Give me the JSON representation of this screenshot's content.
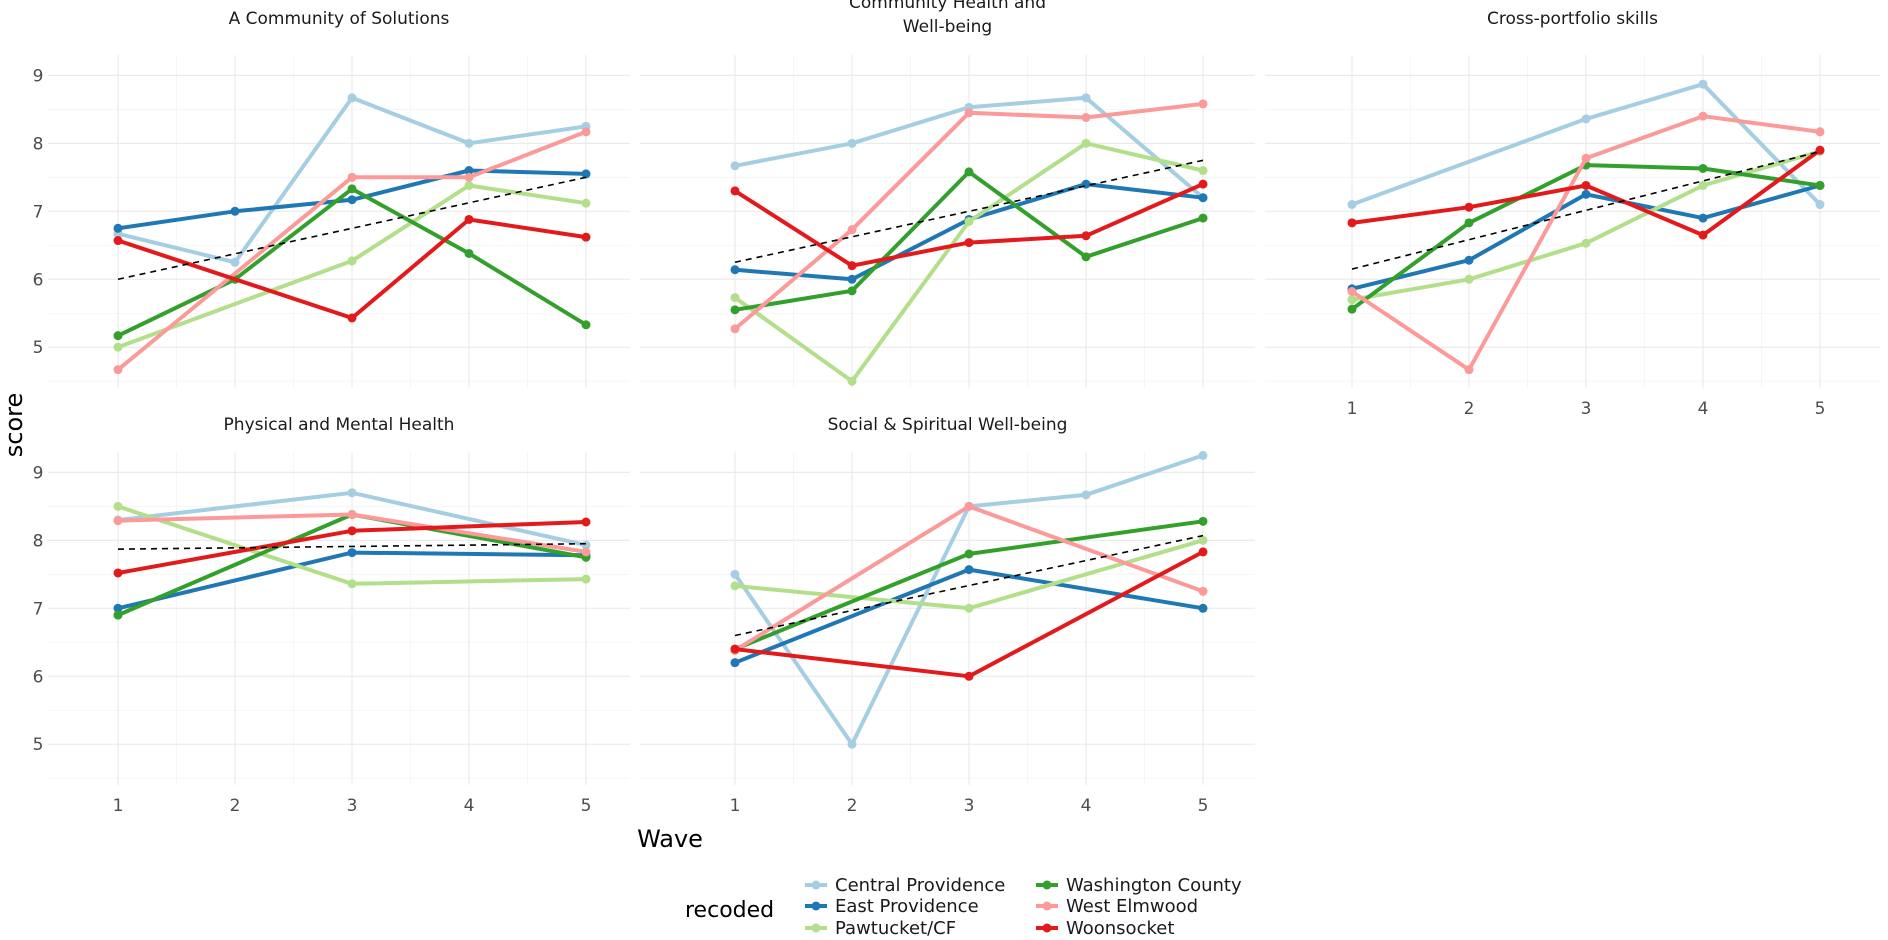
{
  "chart_data": {
    "type": "line",
    "facets": [
      "A Community of Solutions",
      "Community Health and\nWell-being",
      "Cross-portfolio skills",
      "Physical and Mental Health",
      "Social & Spiritual Well-being"
    ],
    "x": [
      1,
      2,
      3,
      4,
      5
    ],
    "xlabel": "Wave",
    "ylabel": "score",
    "ylim": [
      4.4,
      9.3
    ],
    "yticks": [
      5,
      6,
      7,
      8,
      9
    ],
    "grid": true,
    "legend": {
      "title": "recoded",
      "position": "bottom"
    },
    "groups": [
      {
        "name": "Central Providence",
        "color": "#a6cee3"
      },
      {
        "name": "East Providence",
        "color": "#1f78b4"
      },
      {
        "name": "Pawtucket/CF",
        "color": "#b2df8a"
      },
      {
        "name": "Washington County",
        "color": "#33a02c"
      },
      {
        "name": "West Elmwood",
        "color": "#fb9a99"
      },
      {
        "name": "Woonsocket",
        "color": "#e31a1c"
      }
    ],
    "panels": [
      {
        "title": "A Community of Solutions",
        "series": [
          {
            "name": "Central Providence",
            "x": [
              1,
              2,
              3,
              4,
              5
            ],
            "values": [
              6.67,
              6.25,
              8.67,
              8.0,
              8.25
            ]
          },
          {
            "name": "East Providence",
            "x": [
              1,
              2,
              3,
              4,
              5
            ],
            "values": [
              6.75,
              7.0,
              7.17,
              7.6,
              7.55
            ]
          },
          {
            "name": "Pawtucket/CF",
            "x": [
              1,
              3,
              4,
              5
            ],
            "values": [
              5.0,
              6.27,
              7.38,
              7.12
            ]
          },
          {
            "name": "Washington County",
            "x": [
              1,
              2,
              3,
              4,
              5
            ],
            "values": [
              5.17,
              6.0,
              7.33,
              6.38,
              5.33
            ]
          },
          {
            "name": "West Elmwood",
            "x": [
              1,
              3,
              4,
              5
            ],
            "values": [
              4.67,
              7.5,
              7.5,
              8.17
            ]
          },
          {
            "name": "Woonsocket",
            "x": [
              1,
              3,
              4,
              5
            ],
            "values": [
              6.57,
              5.43,
              6.88,
              6.62
            ]
          }
        ],
        "trend": [
          6.0,
          7.5
        ]
      },
      {
        "title": "Community Health and\nWell-being",
        "series": [
          {
            "name": "Central Providence",
            "x": [
              1,
              2,
              3,
              4,
              5
            ],
            "values": [
              7.67,
              8.0,
              8.53,
              8.67,
              7.2
            ]
          },
          {
            "name": "East Providence",
            "x": [
              1,
              2,
              3,
              4,
              5
            ],
            "values": [
              6.14,
              6.0,
              6.88,
              7.4,
              7.2
            ]
          },
          {
            "name": "Pawtucket/CF",
            "x": [
              1,
              2,
              3,
              4,
              5
            ],
            "values": [
              5.73,
              4.5,
              6.85,
              8.0,
              7.6
            ]
          },
          {
            "name": "Washington County",
            "x": [
              1,
              2,
              3,
              4,
              5
            ],
            "values": [
              5.55,
              5.83,
              7.58,
              6.33,
              6.9
            ]
          },
          {
            "name": "West Elmwood",
            "x": [
              1,
              2,
              3,
              4,
              5
            ],
            "values": [
              5.27,
              6.73,
              8.45,
              8.38,
              8.58
            ]
          },
          {
            "name": "Woonsocket",
            "x": [
              1,
              2,
              3,
              4,
              5
            ],
            "values": [
              7.3,
              6.2,
              6.54,
              6.64,
              7.4
            ]
          }
        ],
        "trend": [
          6.25,
          7.75
        ]
      },
      {
        "title": "Cross-portfolio skills",
        "series": [
          {
            "name": "Central Providence",
            "x": [
              1,
              3,
              4,
              5
            ],
            "values": [
              7.1,
              8.36,
              8.87,
              7.1
            ]
          },
          {
            "name": "East Providence",
            "x": [
              1,
              2,
              3,
              4,
              5
            ],
            "values": [
              5.86,
              6.28,
              7.25,
              6.9,
              7.38
            ]
          },
          {
            "name": "Pawtucket/CF",
            "x": [
              1,
              2,
              3,
              4,
              5
            ],
            "values": [
              5.7,
              6.0,
              6.53,
              7.38,
              7.88
            ]
          },
          {
            "name": "Washington County",
            "x": [
              1,
              2,
              3,
              4,
              5
            ],
            "values": [
              5.56,
              6.83,
              7.68,
              7.63,
              7.38
            ]
          },
          {
            "name": "West Elmwood",
            "x": [
              1,
              2,
              3,
              4,
              5
            ],
            "values": [
              5.82,
              4.67,
              7.78,
              8.4,
              8.17
            ]
          },
          {
            "name": "Woonsocket",
            "x": [
              1,
              2,
              3,
              4,
              5
            ],
            "values": [
              6.83,
              7.06,
              7.38,
              6.65,
              7.9
            ]
          }
        ],
        "trend": [
          6.15,
          7.88
        ]
      },
      {
        "title": "Physical and Mental Health",
        "series": [
          {
            "name": "Central Providence",
            "x": [
              1,
              3,
              5
            ],
            "values": [
              8.3,
              8.7,
              7.93
            ]
          },
          {
            "name": "East Providence",
            "x": [
              1,
              3,
              5
            ],
            "values": [
              7.0,
              7.82,
              7.78
            ]
          },
          {
            "name": "Pawtucket/CF",
            "x": [
              1,
              3,
              5
            ],
            "values": [
              8.5,
              7.36,
              7.43
            ]
          },
          {
            "name": "Washington County",
            "x": [
              1,
              3,
              5
            ],
            "values": [
              6.9,
              8.38,
              7.75
            ]
          },
          {
            "name": "West Elmwood",
            "x": [
              1,
              3,
              5
            ],
            "values": [
              8.29,
              8.38,
              7.83
            ]
          },
          {
            "name": "Woonsocket",
            "x": [
              1,
              3,
              5
            ],
            "values": [
              7.52,
              8.14,
              8.27
            ]
          }
        ],
        "trend": [
          7.87,
          7.95
        ]
      },
      {
        "title": "Social & Spiritual Well-being",
        "series": [
          {
            "name": "Central Providence",
            "x": [
              1,
              2,
              3,
              4,
              5
            ],
            "values": [
              7.5,
              5.0,
              8.5,
              8.67,
              9.25
            ]
          },
          {
            "name": "East Providence",
            "x": [
              1,
              3,
              5
            ],
            "values": [
              6.2,
              7.57,
              7.0
            ]
          },
          {
            "name": "Pawtucket/CF",
            "x": [
              1,
              3,
              5
            ],
            "values": [
              7.33,
              7.0,
              8.0
            ]
          },
          {
            "name": "Washington County",
            "x": [
              1,
              3,
              5
            ],
            "values": [
              6.4,
              7.8,
              8.28
            ]
          },
          {
            "name": "West Elmwood",
            "x": [
              1,
              3,
              5
            ],
            "values": [
              6.38,
              8.5,
              7.25
            ]
          },
          {
            "name": "Woonsocket",
            "x": [
              1,
              3,
              5
            ],
            "values": [
              6.4,
              6.0,
              7.83
            ]
          }
        ],
        "trend": [
          6.6,
          8.07
        ]
      }
    ]
  }
}
